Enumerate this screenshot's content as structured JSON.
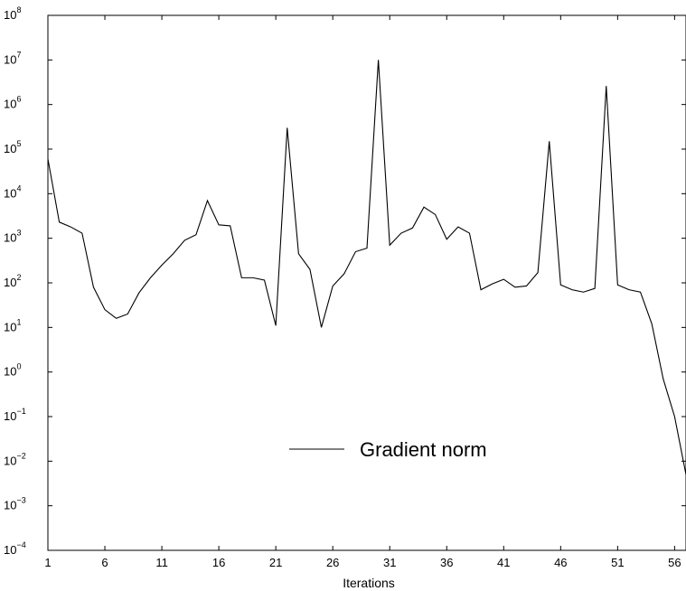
{
  "chart_data": {
    "type": "line",
    "title": "",
    "xlabel": "Iterations",
    "ylabel": "",
    "y_scale": "log",
    "xlim": [
      1,
      57
    ],
    "ylim": [
      0.0001,
      100000000
    ],
    "grid": false,
    "legend_position": "lower-center",
    "x_ticks": [
      1,
      6,
      11,
      16,
      21,
      26,
      31,
      36,
      41,
      46,
      51,
      56
    ],
    "x_tick_labels": [
      "1",
      "6",
      "11",
      "16",
      "21",
      "26",
      "31",
      "36",
      "41",
      "46",
      "51",
      "56"
    ],
    "y_ticks": [
      {
        "base": "10",
        "exp": "−4",
        "value": 0.0001
      },
      {
        "base": "10",
        "exp": "−3",
        "value": 0.001
      },
      {
        "base": "10",
        "exp": "−2",
        "value": 0.01
      },
      {
        "base": "10",
        "exp": "−1",
        "value": 0.1
      },
      {
        "base": "10",
        "exp": "0",
        "value": 1
      },
      {
        "base": "10",
        "exp": "1",
        "value": 10
      },
      {
        "base": "10",
        "exp": "2",
        "value": 100
      },
      {
        "base": "10",
        "exp": "3",
        "value": 1000
      },
      {
        "base": "10",
        "exp": "4",
        "value": 10000
      },
      {
        "base": "10",
        "exp": "5",
        "value": 100000
      },
      {
        "base": "10",
        "exp": "6",
        "value": 1000000
      },
      {
        "base": "10",
        "exp": "7",
        "value": 10000000
      },
      {
        "base": "10",
        "exp": "8",
        "value": 100000000
      }
    ],
    "series": [
      {
        "name": "Gradient norm",
        "color": "#000000",
        "x": [
          1,
          2,
          3,
          4,
          5,
          6,
          7,
          8,
          9,
          10,
          11,
          12,
          13,
          14,
          15,
          16,
          17,
          18,
          19,
          20,
          21,
          22,
          23,
          24,
          25,
          26,
          27,
          28,
          29,
          30,
          31,
          32,
          33,
          34,
          35,
          36,
          37,
          38,
          39,
          40,
          41,
          42,
          43,
          44,
          45,
          46,
          47,
          48,
          49,
          50,
          51,
          52,
          53,
          54,
          55,
          56,
          57
        ],
        "values": [
          60000,
          2300,
          1800,
          1300,
          80,
          25,
          16,
          20,
          60,
          130,
          250,
          450,
          900,
          1200,
          7000,
          2000,
          1900,
          130,
          130,
          115,
          11,
          300000,
          450,
          200,
          10,
          85,
          160,
          500,
          600,
          10000000,
          700,
          1300,
          1700,
          5000,
          3400,
          950,
          1800,
          1300,
          70,
          95,
          120,
          80,
          85,
          170,
          150000,
          90,
          70,
          62,
          75,
          2600000,
          90,
          70,
          62,
          12,
          0.7,
          0.1,
          0.005
        ]
      }
    ]
  }
}
